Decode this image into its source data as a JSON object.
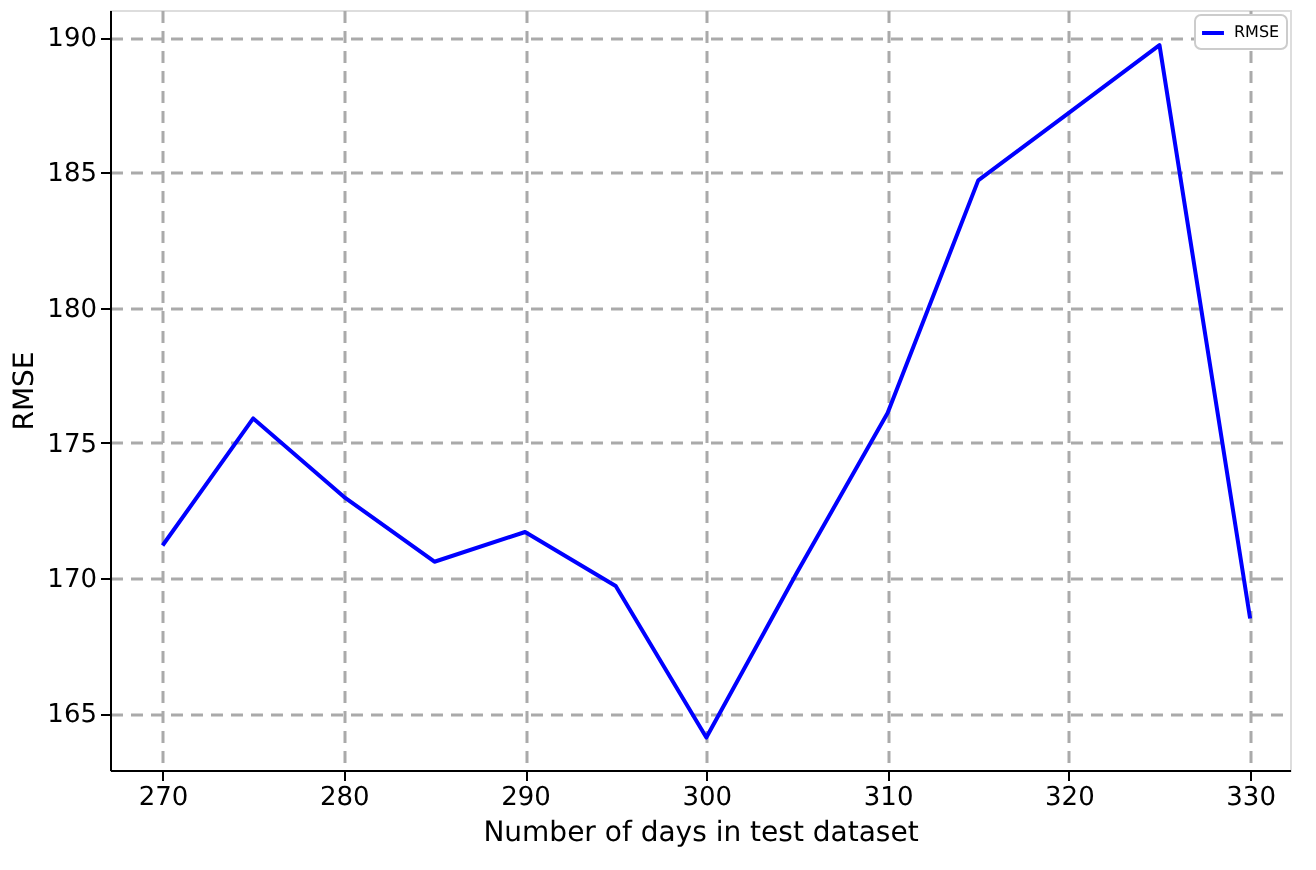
{
  "chart_data": {
    "type": "line",
    "xlabel": "Number of days in test dataset",
    "ylabel": "RMSE",
    "x": [
      270,
      275,
      280,
      285,
      290,
      295,
      300,
      305,
      310,
      315,
      320,
      325,
      330
    ],
    "series": [
      {
        "name": "RMSE",
        "color": "#0000ff",
        "values": [
          171.2,
          175.9,
          173.0,
          170.6,
          171.7,
          169.7,
          164.1,
          170.2,
          176.1,
          184.7,
          187.2,
          189.7,
          168.5
        ]
      }
    ],
    "xlim": [
      267.1,
      332.2
    ],
    "ylim": [
      162.9,
      191.0
    ],
    "xticks": [
      270,
      280,
      290,
      300,
      310,
      320,
      330
    ],
    "yticks": [
      165,
      170,
      175,
      180,
      185,
      190
    ],
    "grid": true,
    "legend": "top right",
    "line_style": "solid",
    "marker": "none"
  }
}
